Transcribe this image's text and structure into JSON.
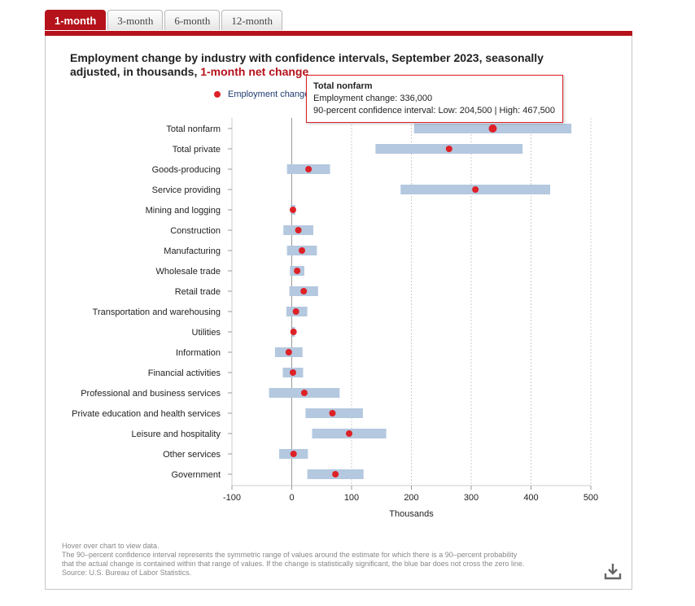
{
  "tabs": [
    {
      "label": "1-month",
      "active": true
    },
    {
      "label": "3-month",
      "active": false
    },
    {
      "label": "6-month",
      "active": false
    },
    {
      "label": "12-month",
      "active": false
    }
  ],
  "title_main": "Employment change by industry with confidence intervals, September 2023, seasonally adjusted, in thousands, ",
  "title_highlight": "1-month net change",
  "legend_label": "Employment change",
  "tooltip": {
    "title": "Total nonfarm",
    "line1": "Employment change: 336,000",
    "line2": "90-percent confidence interval: Low: 204,500 | High: 467,500"
  },
  "notes": [
    "Hover over chart to view data.",
    "The 90–percent confidence interval represents the symmetric range of values around the estimate for which there is a 90–percent probability",
    "that the actual change is contained within that range of values. If the change is statistically significant, the blue bar does not cross the zero line.",
    "Source: U.S. Bureau of Labor Statistics."
  ],
  "colors": {
    "accent": "#b5121b",
    "point": "#dd2127",
    "interval": "#b4c8df",
    "axis": "#999999"
  },
  "chart_data": {
    "type": "scatter",
    "xlabel": "Thousands",
    "xlim": [
      -100,
      500
    ],
    "xticks": [
      -100,
      0,
      100,
      200,
      300,
      400,
      500
    ],
    "grid": "vertical dotted",
    "categories": [
      "Total nonfarm",
      "Total private",
      "Goods-producing",
      "Service providing",
      "Mining and logging",
      "Construction",
      "Manufacturing",
      "Wholesale trade",
      "Retail trade",
      "Transportation and warehousing",
      "Utilities",
      "Information",
      "Financial activities",
      "Professional and business services",
      "Private education and health services",
      "Leisure and hospitality",
      "Other services",
      "Government"
    ],
    "series": [
      {
        "name": "Employment change",
        "values": [
          336,
          263,
          28,
          307,
          2,
          11,
          17,
          9,
          20,
          7,
          3,
          -5,
          2,
          21,
          68,
          96,
          3,
          73
        ]
      },
      {
        "name": "90-percent confidence interval low",
        "values": [
          204.5,
          140,
          -8,
          182,
          -2,
          -14,
          -8,
          -3,
          -4,
          -9,
          0.5,
          -28,
          -15,
          -38,
          23,
          34,
          -21,
          26
        ]
      },
      {
        "name": "90-percent confidence interval high",
        "values": [
          467.5,
          386,
          64,
          432,
          6,
          36,
          42,
          21,
          44,
          26,
          5.5,
          18,
          19,
          80,
          119,
          158,
          27,
          120
        ]
      }
    ]
  }
}
